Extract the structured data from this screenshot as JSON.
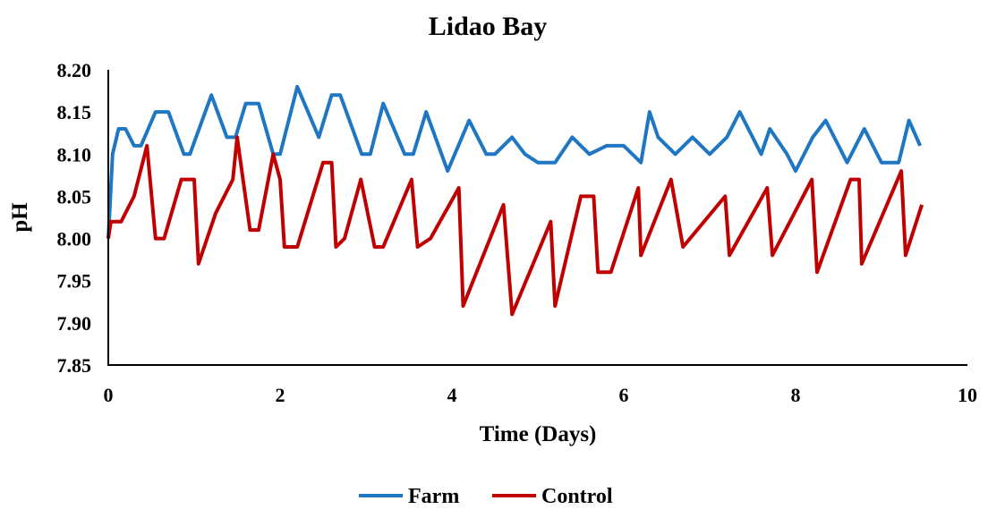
{
  "chart_data": {
    "type": "line",
    "title": "Lidao Bay",
    "xlabel": "Time (Days)",
    "ylabel": "pH",
    "xlim": [
      0,
      10
    ],
    "ylim": [
      7.85,
      8.2
    ],
    "xticks": [
      "0",
      "2",
      "4",
      "6",
      "8",
      "10"
    ],
    "yticks": [
      "7.85",
      "7.90",
      "7.95",
      "8.00",
      "8.05",
      "8.10",
      "8.15",
      "8.20"
    ],
    "grid": false,
    "legend_position": "bottom",
    "series": [
      {
        "name": "Farm",
        "color": "#1F77C4",
        "points": [
          [
            0,
            8.0
          ],
          [
            0.05,
            8.1
          ],
          [
            0.12,
            8.13
          ],
          [
            0.2,
            8.13
          ],
          [
            0.3,
            8.11
          ],
          [
            0.38,
            8.11
          ],
          [
            0.55,
            8.15
          ],
          [
            0.7,
            8.15
          ],
          [
            0.88,
            8.1
          ],
          [
            0.95,
            8.1
          ],
          [
            1.2,
            8.17
          ],
          [
            1.38,
            8.12
          ],
          [
            1.48,
            8.12
          ],
          [
            1.6,
            8.16
          ],
          [
            1.75,
            8.16
          ],
          [
            1.92,
            8.1
          ],
          [
            2.0,
            8.1
          ],
          [
            2.2,
            8.18
          ],
          [
            2.45,
            8.12
          ],
          [
            2.6,
            8.17
          ],
          [
            2.7,
            8.17
          ],
          [
            2.95,
            8.1
          ],
          [
            3.05,
            8.1
          ],
          [
            3.2,
            8.16
          ],
          [
            3.45,
            8.1
          ],
          [
            3.55,
            8.1
          ],
          [
            3.7,
            8.15
          ],
          [
            3.95,
            8.08
          ],
          [
            4.2,
            8.14
          ],
          [
            4.4,
            8.1
          ],
          [
            4.5,
            8.1
          ],
          [
            4.7,
            8.12
          ],
          [
            4.85,
            8.1
          ],
          [
            5.0,
            8.09
          ],
          [
            5.2,
            8.09
          ],
          [
            5.4,
            8.12
          ],
          [
            5.6,
            8.1
          ],
          [
            5.8,
            8.11
          ],
          [
            6.0,
            8.11
          ],
          [
            6.2,
            8.09
          ],
          [
            6.3,
            8.15
          ],
          [
            6.4,
            8.12
          ],
          [
            6.6,
            8.1
          ],
          [
            6.8,
            8.12
          ],
          [
            7.0,
            8.1
          ],
          [
            7.2,
            8.12
          ],
          [
            7.35,
            8.15
          ],
          [
            7.6,
            8.1
          ],
          [
            7.7,
            8.13
          ],
          [
            7.9,
            8.1
          ],
          [
            8.0,
            8.08
          ],
          [
            8.2,
            8.12
          ],
          [
            8.35,
            8.14
          ],
          [
            8.6,
            8.09
          ],
          [
            8.8,
            8.13
          ],
          [
            9.0,
            8.09
          ],
          [
            9.2,
            8.09
          ],
          [
            9.32,
            8.14
          ],
          [
            9.45,
            8.11
          ]
        ]
      },
      {
        "name": "Control",
        "color": "#C00000",
        "points": [
          [
            0,
            8.0
          ],
          [
            0.03,
            8.02
          ],
          [
            0.15,
            8.02
          ],
          [
            0.3,
            8.05
          ],
          [
            0.45,
            8.11
          ],
          [
            0.55,
            8.0
          ],
          [
            0.65,
            8.0
          ],
          [
            0.85,
            8.07
          ],
          [
            1.0,
            8.07
          ],
          [
            1.05,
            7.97
          ],
          [
            1.25,
            8.03
          ],
          [
            1.45,
            8.07
          ],
          [
            1.5,
            8.12
          ],
          [
            1.65,
            8.01
          ],
          [
            1.75,
            8.01
          ],
          [
            1.92,
            8.1
          ],
          [
            2.0,
            8.07
          ],
          [
            2.05,
            7.99
          ],
          [
            2.2,
            7.99
          ],
          [
            2.5,
            8.09
          ],
          [
            2.6,
            8.09
          ],
          [
            2.65,
            7.99
          ],
          [
            2.75,
            8.0
          ],
          [
            2.94,
            8.07
          ],
          [
            3.1,
            7.99
          ],
          [
            3.2,
            7.99
          ],
          [
            3.53,
            8.07
          ],
          [
            3.6,
            7.99
          ],
          [
            3.75,
            8.0
          ],
          [
            4.08,
            8.06
          ],
          [
            4.13,
            7.92
          ],
          [
            4.6,
            8.04
          ],
          [
            4.7,
            7.91
          ],
          [
            5.15,
            8.02
          ],
          [
            5.2,
            7.92
          ],
          [
            5.5,
            8.05
          ],
          [
            5.65,
            8.05
          ],
          [
            5.7,
            7.96
          ],
          [
            5.85,
            7.96
          ],
          [
            6.17,
            8.06
          ],
          [
            6.2,
            7.98
          ],
          [
            6.55,
            8.07
          ],
          [
            6.69,
            7.99
          ],
          [
            7.18,
            8.05
          ],
          [
            7.23,
            7.98
          ],
          [
            7.67,
            8.06
          ],
          [
            7.73,
            7.98
          ],
          [
            8.19,
            8.07
          ],
          [
            8.25,
            7.96
          ],
          [
            8.64,
            8.07
          ],
          [
            8.74,
            8.07
          ],
          [
            8.77,
            7.97
          ],
          [
            9.23,
            8.08
          ],
          [
            9.28,
            7.98
          ],
          [
            9.47,
            8.04
          ]
        ]
      }
    ]
  }
}
